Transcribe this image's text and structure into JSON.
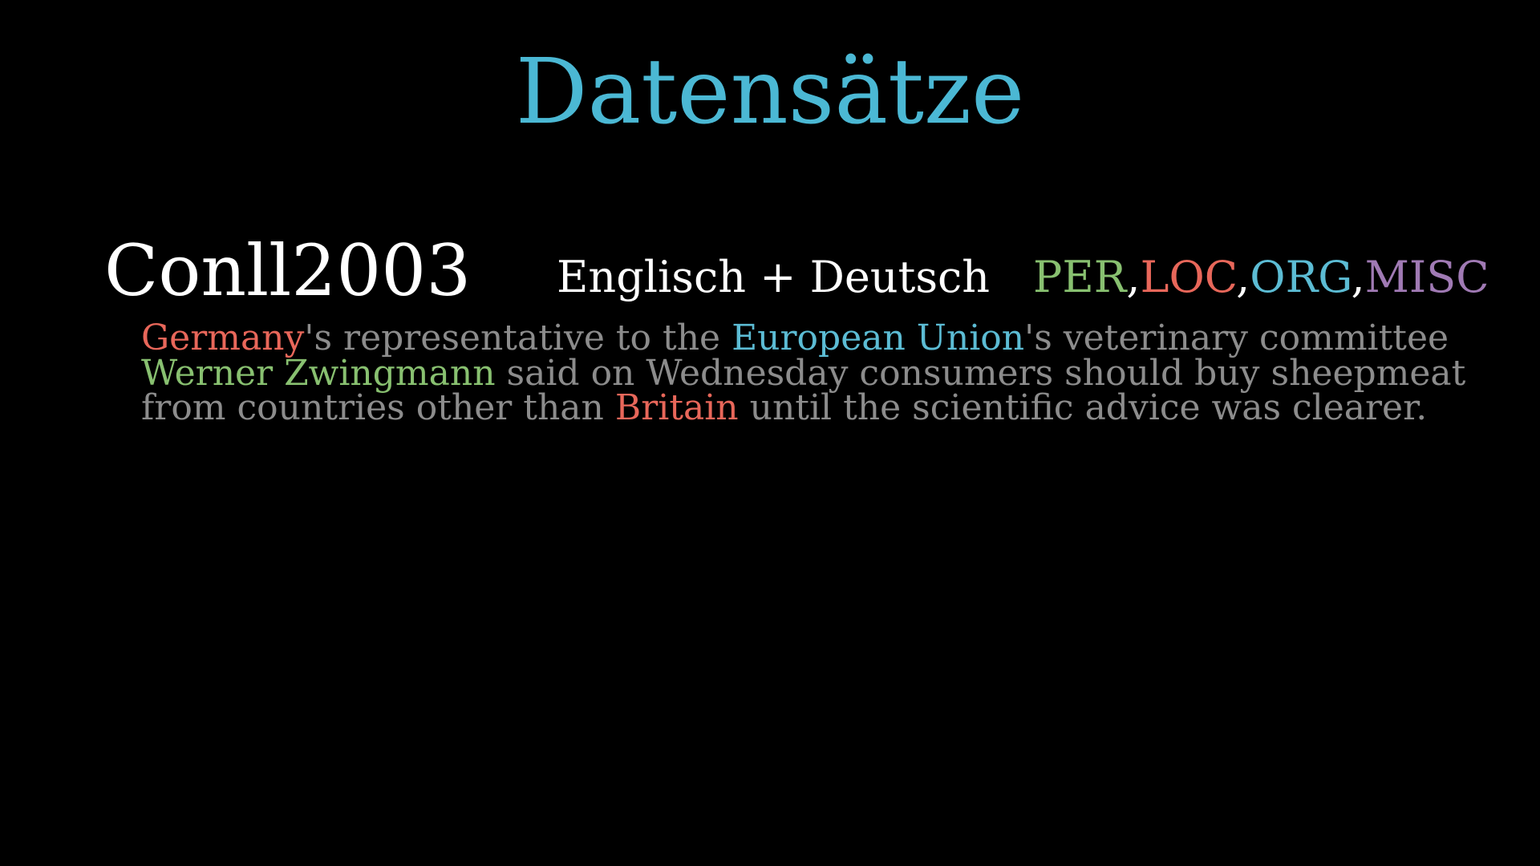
{
  "slide": {
    "title": "Datensätze",
    "title_color": "#4bb8d4",
    "background": "#000000"
  },
  "dataset": {
    "name": "Conll2003",
    "languages": "Englisch + Deutsch",
    "tags": [
      {
        "label": "PER",
        "color": "#88c070"
      },
      {
        "label": "LOC",
        "color": "#e8675a"
      },
      {
        "label": "ORG",
        "color": "#5cbcd4"
      },
      {
        "label": "MISC",
        "color": "#a07ab4"
      }
    ],
    "tag_separator": ","
  },
  "example": {
    "plain_color": "#8c8c8c",
    "lines": [
      [
        {
          "text": "Germany",
          "entity": "LOC"
        },
        {
          "text": "'s representative to the ",
          "entity": null
        },
        {
          "text": "European Union",
          "entity": "ORG"
        },
        {
          "text": "'s veterinary committee",
          "entity": null
        }
      ],
      [
        {
          "text": "Werner Zwingmann",
          "entity": "PER"
        },
        {
          "text": " said on Wednesday consumers should buy sheepmeat",
          "entity": null
        }
      ],
      [
        {
          "text": "from countries other than ",
          "entity": null
        },
        {
          "text": "Britain",
          "entity": "LOC"
        },
        {
          "text": " until the scientific advice was clearer.",
          "entity": null
        }
      ]
    ]
  }
}
